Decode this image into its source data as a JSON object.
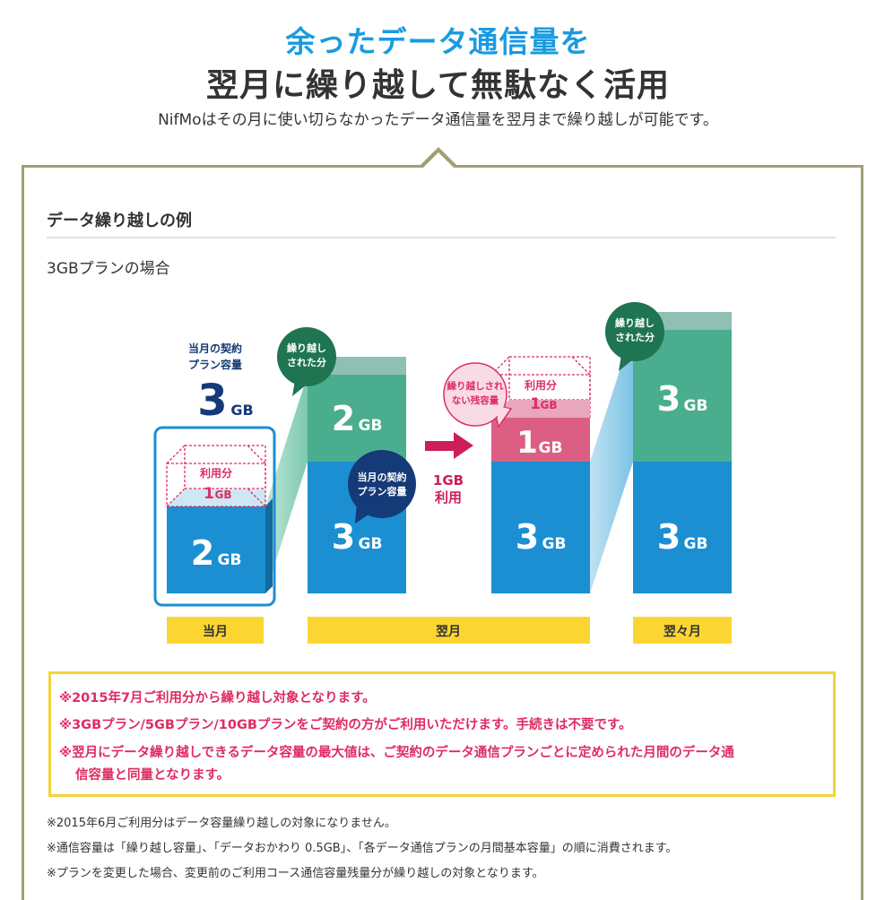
{
  "hero": {
    "line1": "余ったデータ通信量を",
    "line2": "翌月に繰り越して無駄なく活用",
    "subtitle": "NifMoはその月に使い切らなかったデータ通信量を翌月まで繰り越しが可能です。"
  },
  "section": {
    "title": "データ繰り越しの例",
    "plan_label": "3GBプランの場合"
  },
  "diagram": {
    "colors": {
      "blue": "#1b8fd1",
      "green": "#4aae8e",
      "dark_green": "#1f7452",
      "pink": "#dc5e82",
      "yellow": "#fbd632",
      "navy": "#153a78"
    },
    "contract_label_1": "当月の契約",
    "contract_label_2": "プラン容量",
    "contract_value": "3",
    "contract_unit": "GB",
    "cur": {
      "used_label": "利用分",
      "used_value": "1",
      "used_unit": "GB",
      "remain_value": "2",
      "remain_unit": "GB"
    },
    "bubble_carried_1": "繰り越し",
    "bubble_carried_2": "された分",
    "next": {
      "carry_value": "2",
      "carry_unit": "GB",
      "base_value": "3",
      "base_unit": "GB"
    },
    "bubble_contract_1": "当月の契約",
    "bubble_contract_2": "プラン容量",
    "arrow_line1": "1GB",
    "arrow_line2": "利用",
    "bubble_unused_1": "繰り越しされ",
    "bubble_unused_2": "ない残容量",
    "next2": {
      "used_label": "利用分",
      "used_value": "1",
      "used_unit": "GB",
      "left_value": "1",
      "left_unit": "GB",
      "base_value": "3",
      "base_unit": "GB"
    },
    "month3": {
      "carry_value": "3",
      "carry_unit": "GB",
      "base_value": "3",
      "base_unit": "GB"
    },
    "bubble_carried3_1": "繰り越し",
    "bubble_carried3_2": "された分",
    "labels": {
      "current": "当月",
      "next": "翌月",
      "after_next": "翌々月"
    }
  },
  "notes": {
    "red": [
      "※2015年7月ご利用分から繰り越し対象となります。",
      "※3GBプラン/5GBプラン/10GBプランをご契約の方がご利用いただけます。手続きは不要です。",
      "※翌月にデータ繰り越しできるデータ容量の最大値は、ご契約のデータ通信プランごとに定められた月間のデータ通",
      "信容量と同量となります。"
    ],
    "small": [
      "※2015年6月ご利用分はデータ容量繰り越しの対象になりません。",
      "※通信容量は「繰り越し容量」、「データおかわり 0.5GB」、「各データ通信プランの月間基本容量」の順に消費されます。",
      "※プランを変更した場合、変更前のご利用コース通信容量残量分が繰り越しの対象となります。"
    ]
  }
}
